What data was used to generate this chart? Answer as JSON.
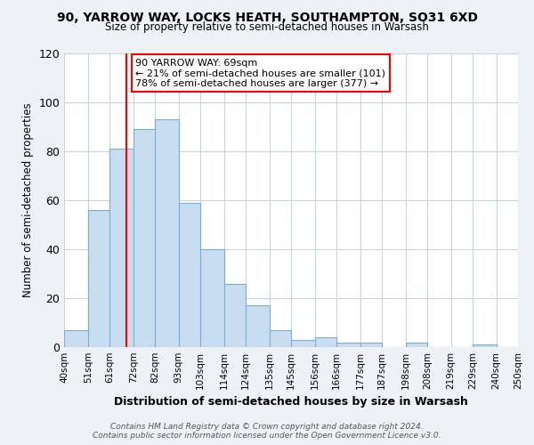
{
  "title": "90, YARROW WAY, LOCKS HEATH, SOUTHAMPTON, SO31 6XD",
  "subtitle": "Size of property relative to semi-detached houses in Warsash",
  "xlabel": "Distribution of semi-detached houses by size in Warsash",
  "ylabel": "Number of semi-detached properties",
  "bar_edges": [
    40,
    51,
    61,
    72,
    82,
    93,
    103,
    114,
    124,
    135,
    145,
    156,
    166,
    177,
    187,
    198,
    208,
    219,
    229,
    240,
    250
  ],
  "bar_heights": [
    7,
    56,
    81,
    89,
    93,
    59,
    40,
    26,
    17,
    7,
    3,
    4,
    2,
    2,
    0,
    2,
    0,
    0,
    1,
    0
  ],
  "bar_color": "#c8ddf0",
  "bar_edge_color": "#7aafd4",
  "vline_x": 69,
  "vline_color": "red",
  "annotation_title": "90 YARROW WAY: 69sqm",
  "annotation_line1": "← 21% of semi-detached houses are smaller (101)",
  "annotation_line2": "78% of semi-detached houses are larger (377) →",
  "annotation_box_color": "white",
  "annotation_box_edge_color": "red",
  "ylim": [
    0,
    120
  ],
  "yticks": [
    0,
    20,
    40,
    60,
    80,
    100,
    120
  ],
  "tick_labels": [
    "40sqm",
    "51sqm",
    "61sqm",
    "72sqm",
    "82sqm",
    "93sqm",
    "103sqm",
    "114sqm",
    "124sqm",
    "135sqm",
    "145sqm",
    "156sqm",
    "166sqm",
    "177sqm",
    "187sqm",
    "198sqm",
    "208sqm",
    "219sqm",
    "229sqm",
    "240sqm",
    "250sqm"
  ],
  "footer1": "Contains HM Land Registry data © Crown copyright and database right 2024.",
  "footer2": "Contains public sector information licensed under the Open Government Licence v3.0.",
  "bg_color": "#eef2f7",
  "plot_bg_color": "white",
  "grid_color": "#c8d4e0"
}
